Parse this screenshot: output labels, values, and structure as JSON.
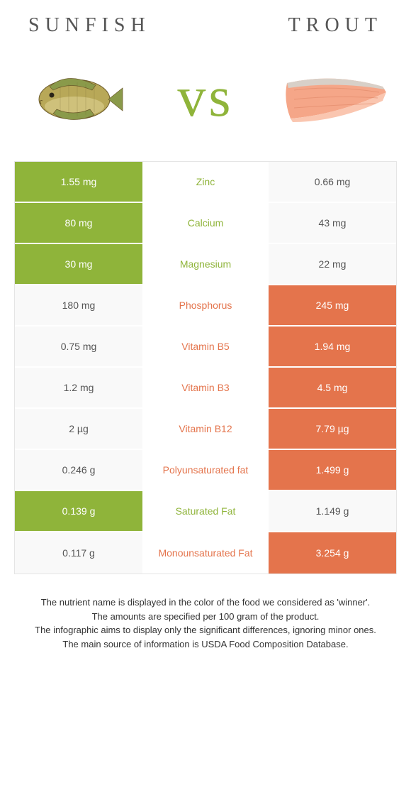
{
  "header": {
    "left": "Sunfish",
    "right": "Trout",
    "left_letterspacing": 8,
    "right_letterspacing": 10
  },
  "vs": {
    "text": "vs",
    "color": "#8fb43a",
    "fontsize": 80
  },
  "colors": {
    "left": "#8fb43a",
    "right": "#e4744c",
    "plain_bg": "#f9f9f9",
    "plain_text": "#555555",
    "row_gap": "#ffffff",
    "border": "#e5e5e5"
  },
  "table": {
    "rows": [
      {
        "left": "1.55 mg",
        "name": "Zinc",
        "right": "0.66 mg",
        "winner": "left"
      },
      {
        "left": "80 mg",
        "name": "Calcium",
        "right": "43 mg",
        "winner": "left"
      },
      {
        "left": "30 mg",
        "name": "Magnesium",
        "right": "22 mg",
        "winner": "left"
      },
      {
        "left": "180 mg",
        "name": "Phosphorus",
        "right": "245 mg",
        "winner": "right"
      },
      {
        "left": "0.75 mg",
        "name": "Vitamin B5",
        "right": "1.94 mg",
        "winner": "right"
      },
      {
        "left": "1.2 mg",
        "name": "Vitamin B3",
        "right": "4.5 mg",
        "winner": "right"
      },
      {
        "left": "2 µg",
        "name": "Vitamin B12",
        "right": "7.79 µg",
        "winner": "right"
      },
      {
        "left": "0.246 g",
        "name": "Polyunsaturated fat",
        "right": "1.499 g",
        "winner": "right"
      },
      {
        "left": "0.139 g",
        "name": "Saturated Fat",
        "right": "1.149 g",
        "winner": "left"
      },
      {
        "left": "0.117 g",
        "name": "Monounsaturated Fat",
        "right": "3.254 g",
        "winner": "right"
      }
    ]
  },
  "footer": {
    "line1": "The nutrient name is displayed in the color of the food we considered as 'winner'.",
    "line2": "The amounts are specified per 100 gram of the product.",
    "line3": "The infographic aims to display only the significant differences, ignoring minor ones.",
    "line4": "The main source of information is USDA Food Composition Database."
  },
  "images": {
    "sunfish": {
      "body_fill": "#b8a858",
      "body_stroke": "#6b5a2a",
      "fin_fill": "#8a9a4a",
      "belly": "#d8cc8a"
    },
    "trout": {
      "flesh": "#f5a688",
      "flesh_light": "#fac6b0",
      "skin": "#d8d0c8",
      "line": "#e08868"
    }
  }
}
